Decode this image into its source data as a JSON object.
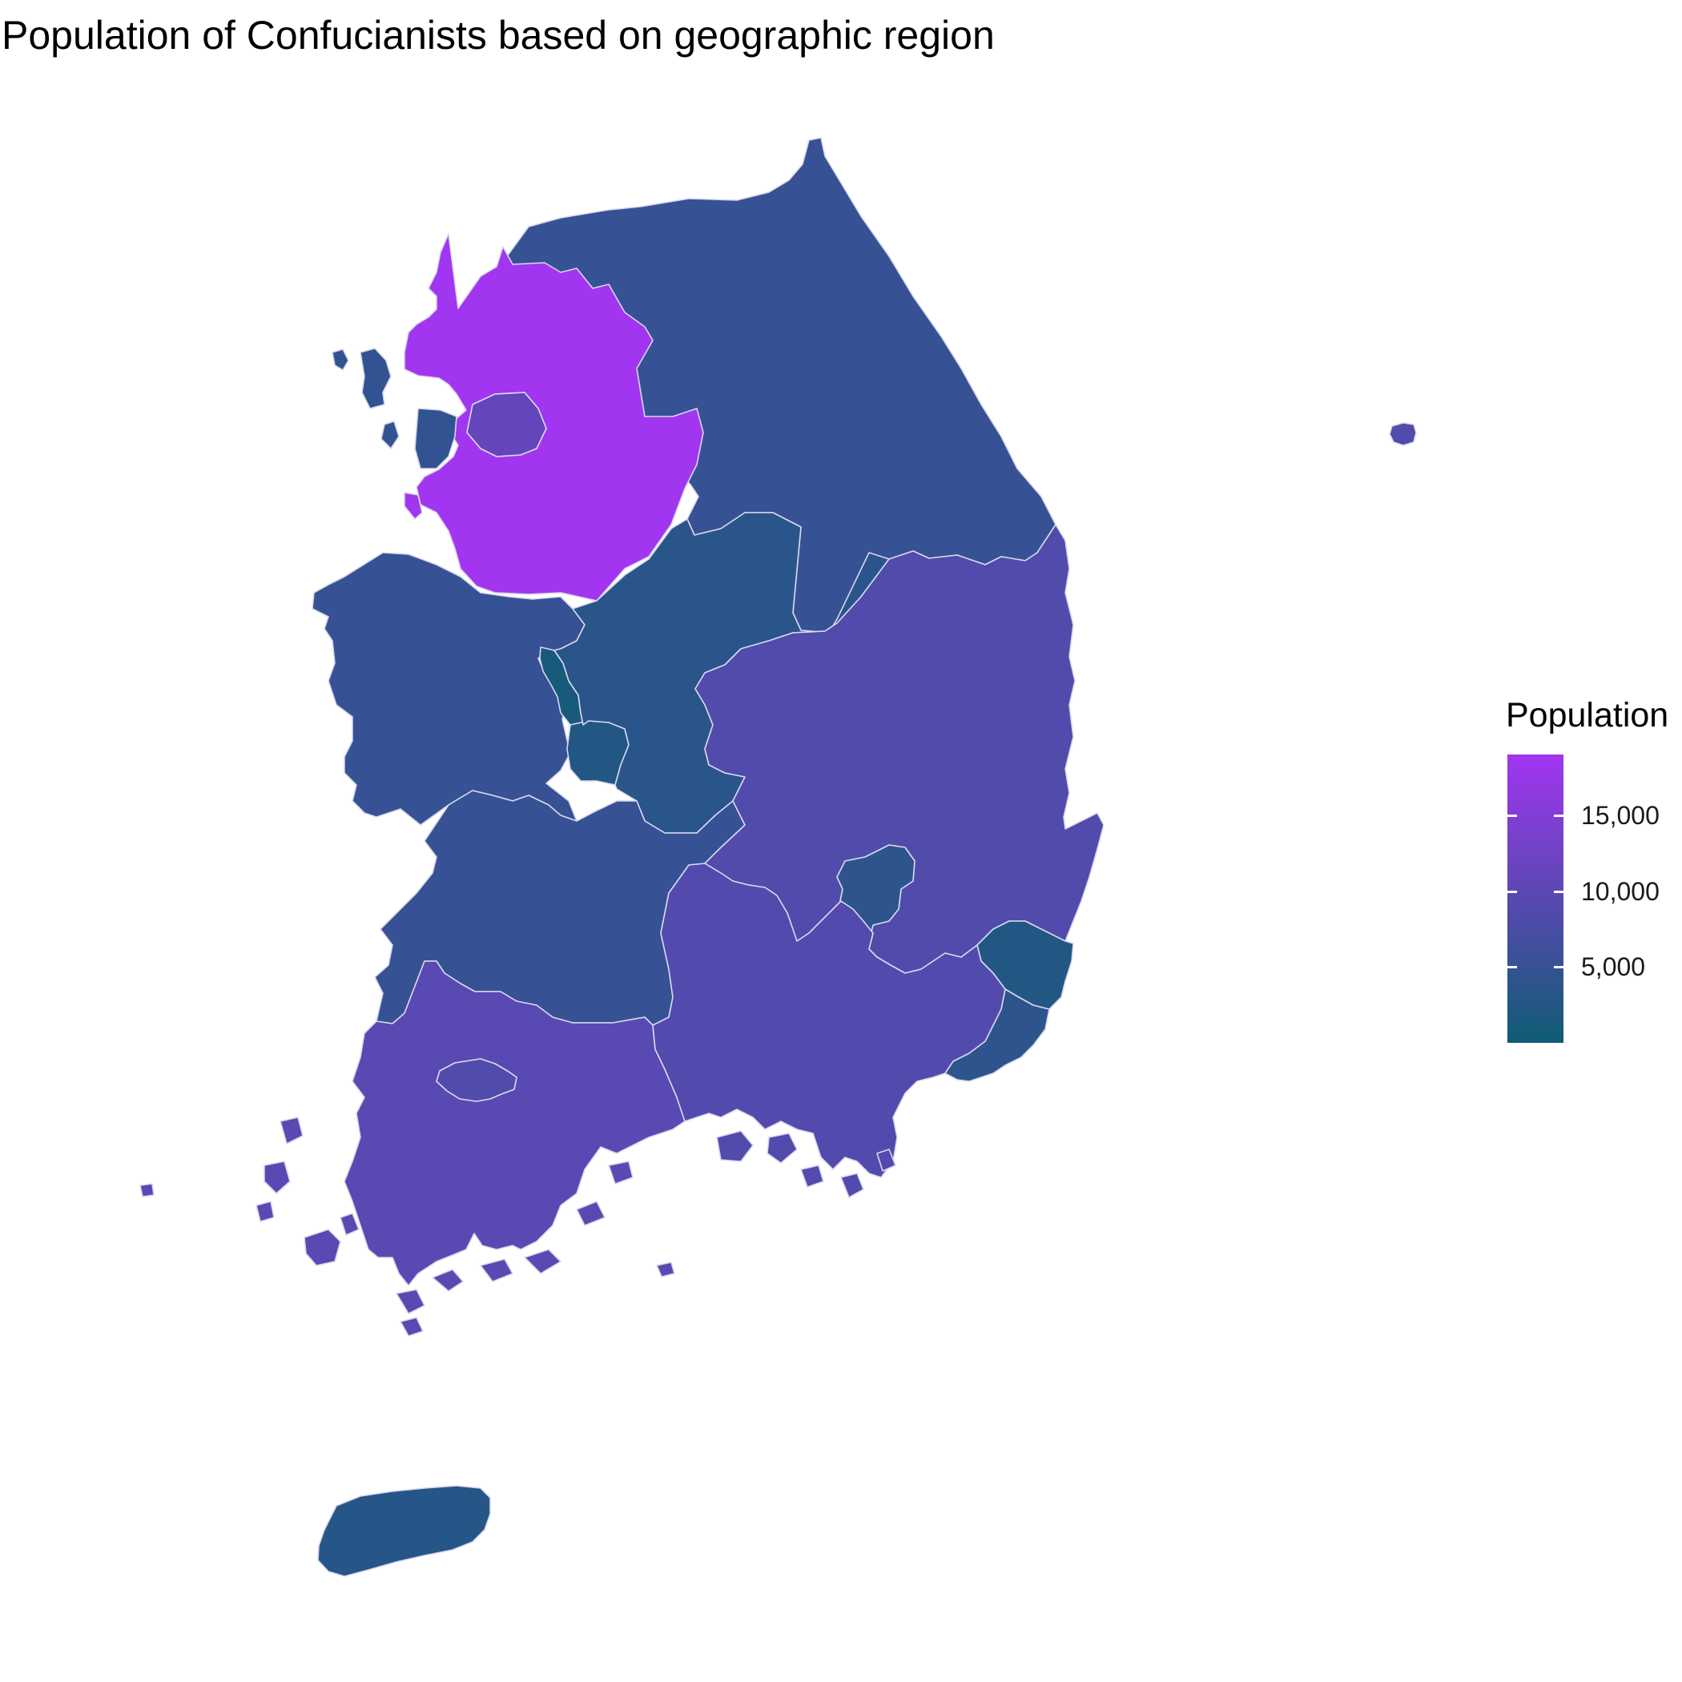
{
  "chart_data": {
    "type": "choropleth",
    "title": "Population of Confucianists based on geographic region",
    "legend": {
      "title": "Population",
      "position": "right",
      "ticks": [
        {
          "value": 5000,
          "label": "5,000"
        },
        {
          "value": 10000,
          "label": "10,000"
        },
        {
          "value": 15000,
          "label": "15,000"
        }
      ],
      "range": [
        0,
        19000
      ],
      "color_low": "#0f5c73",
      "color_high": "#a235f0"
    },
    "regions": [
      {
        "name": "Gyeonggi",
        "value": 19000
      },
      {
        "name": "Seoul",
        "value": 11000
      },
      {
        "name": "Incheon",
        "value": 4500
      },
      {
        "name": "Gangwon",
        "value": 5000
      },
      {
        "name": "Chungcheongbuk",
        "value": 3500
      },
      {
        "name": "Chungcheongnam",
        "value": 5000
      },
      {
        "name": "Sejong",
        "value": 1000
      },
      {
        "name": "Daejeon",
        "value": 2500
      },
      {
        "name": "Jeollabuk",
        "value": 5000
      },
      {
        "name": "Gwangju",
        "value": 8500
      },
      {
        "name": "Jeollanam",
        "value": 9500
      },
      {
        "name": "Gyeongsangbuk",
        "value": 8500
      },
      {
        "name": "Daegu",
        "value": 4000
      },
      {
        "name": "Gyeongsangnam",
        "value": 8800
      },
      {
        "name": "Ulsan",
        "value": 2500
      },
      {
        "name": "Busan",
        "value": 4000
      },
      {
        "name": "Jeju",
        "value": 3000
      }
    ]
  }
}
